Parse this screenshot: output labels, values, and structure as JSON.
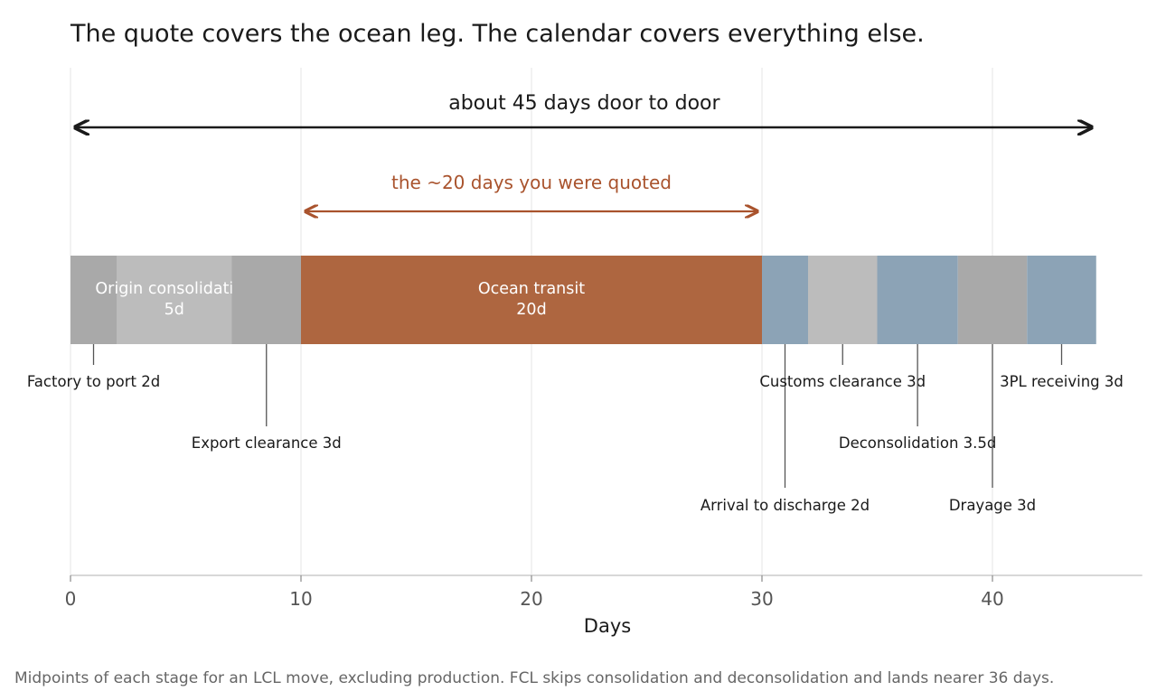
{
  "chart_data": {
    "type": "bar",
    "orientation": "horizontal-timeline",
    "title": "The quote covers the ocean leg. The calendar covers everything else.",
    "xlabel": "Days",
    "xlim": [
      0,
      46.5
    ],
    "xticks": [
      0,
      10,
      20,
      30,
      40
    ],
    "grid": true,
    "caption": "Midpoints of each stage for an LCL move, excluding production. FCL skips consolidation and deconsolidation and lands nearer 36 days.",
    "stages": [
      {
        "label": "Factory to port 2d",
        "start": 0,
        "duration": 2,
        "color": "#a9a9a9",
        "display": "callout",
        "tier": 1
      },
      {
        "label": "Origin consolidation",
        "sublabel": "5d",
        "start": 2,
        "duration": 5,
        "color": "#bcbcbc",
        "display": "inside"
      },
      {
        "label": "Export clearance 3d",
        "start": 7,
        "duration": 3,
        "color": "#a9a9a9",
        "display": "callout",
        "tier": 2
      },
      {
        "label": "Ocean transit",
        "sublabel": "20d",
        "start": 10,
        "duration": 20,
        "color": "#ae6640",
        "display": "inside"
      },
      {
        "label": "Arrival to discharge 2d",
        "start": 30,
        "duration": 2,
        "color": "#8ca3b6",
        "display": "callout",
        "tier": 3
      },
      {
        "label": "Customs clearance 3d",
        "start": 32,
        "duration": 3,
        "color": "#bcbcbc",
        "display": "callout",
        "tier": 1
      },
      {
        "label": "Deconsolidation 3.5d",
        "start": 35,
        "duration": 3.5,
        "color": "#8ca3b6",
        "display": "callout",
        "tier": 2
      },
      {
        "label": "Drayage 3d",
        "start": 38.5,
        "duration": 3,
        "color": "#a9a9a9",
        "display": "callout",
        "tier": 3
      },
      {
        "label": "3PL receiving 3d",
        "start": 41.5,
        "duration": 3,
        "color": "#8ca3b6",
        "display": "callout",
        "tier": 1
      }
    ],
    "spans": [
      {
        "label": "about 45 days door to door",
        "start": 0,
        "end": 44.5,
        "color": "#1a1a1a",
        "kind": "total"
      },
      {
        "label": "the ~20 days you were quoted",
        "start": 10,
        "end": 30,
        "color": "#a9532d",
        "kind": "quoted"
      }
    ]
  }
}
